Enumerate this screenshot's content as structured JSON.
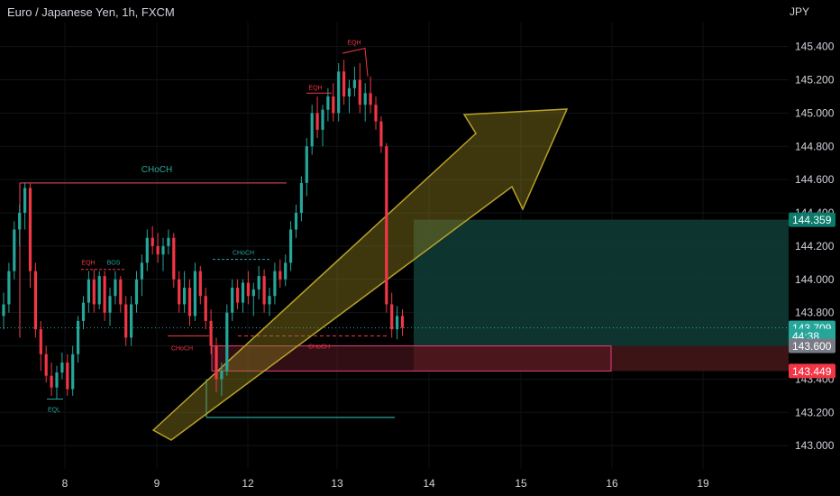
{
  "header": {
    "symbol_title": "Euro / Japanese Yen, 1h, FXCM",
    "currency": "JPY"
  },
  "chart_data": {
    "type": "candlestick",
    "title": "Euro / Japanese Yen, 1h, FXCM",
    "ylim": [
      142.86,
      145.55
    ],
    "y_ticks": [
      "145.400",
      "145.200",
      "145.000",
      "144.800",
      "144.600",
      "144.400",
      "144.200",
      "144.000",
      "143.800",
      "143.600",
      "143.400",
      "143.200",
      "143.000"
    ],
    "y_tick_values": [
      145.4,
      145.2,
      145.0,
      144.8,
      144.6,
      144.4,
      144.2,
      144.0,
      143.8,
      143.6,
      143.4,
      143.2,
      143.0
    ],
    "x_ticks": [
      "8",
      "9",
      "12",
      "13",
      "14",
      "15",
      "16",
      "19"
    ],
    "price_labels": [
      {
        "text": "144.359",
        "value": 144.359,
        "bg": "#0b7a6a"
      },
      {
        "text": "143.709",
        "value": 143.709,
        "bg": "#26a69a"
      },
      {
        "text": "44:38",
        "value": 143.66,
        "bg": "#26a69a"
      },
      {
        "text": "143.600",
        "value": 143.6,
        "bg": "#787b86"
      },
      {
        "text": "143.449",
        "value": 143.449,
        "bg": "#f23645"
      }
    ],
    "annotations": {
      "choch_top": "CHoCH",
      "eql": "EQL",
      "eqh_left": "EQH",
      "bos": "BOS",
      "choch_mid": "CHoCH",
      "choch_left_low": "CHoCH",
      "eqh_mid": "EQH",
      "eqh_top": "EQH",
      "choch_right": "CHoCH"
    },
    "colors": {
      "up": "#26a69a",
      "down": "#f23645",
      "bg": "#000000",
      "arrow": "#8a7a1e",
      "tp_zone": "#0f3a34",
      "sl_zone": "#3d1416"
    },
    "candles": [
      [
        143.78,
        143.92,
        143.7,
        143.85
      ],
      [
        143.85,
        144.1,
        143.8,
        144.05
      ],
      [
        144.05,
        144.35,
        144.0,
        144.3
      ],
      [
        144.3,
        144.45,
        144.2,
        144.4
      ],
      [
        144.4,
        144.58,
        144.3,
        144.55
      ],
      [
        144.55,
        144.58,
        143.95,
        144.05
      ],
      [
        144.05,
        144.1,
        143.65,
        143.7
      ],
      [
        143.7,
        143.75,
        143.45,
        143.55
      ],
      [
        143.55,
        143.6,
        143.38,
        143.42
      ],
      [
        143.42,
        143.5,
        143.3,
        143.35
      ],
      [
        143.35,
        143.48,
        143.28,
        143.44
      ],
      [
        143.44,
        143.56,
        143.4,
        143.5
      ],
      [
        143.5,
        143.55,
        143.3,
        143.34
      ],
      [
        143.34,
        143.6,
        143.3,
        143.55
      ],
      [
        143.55,
        143.78,
        143.5,
        143.75
      ],
      [
        143.75,
        143.9,
        143.7,
        143.86
      ],
      [
        143.86,
        144.05,
        143.8,
        144.0
      ],
      [
        144.0,
        144.06,
        143.8,
        143.85
      ],
      [
        143.85,
        144.05,
        143.82,
        144.02
      ],
      [
        144.02,
        144.05,
        143.75,
        143.8
      ],
      [
        143.8,
        143.95,
        143.72,
        143.9
      ],
      [
        143.9,
        144.05,
        143.85,
        144.0
      ],
      [
        144.0,
        144.02,
        143.8,
        143.85
      ],
      [
        143.85,
        143.9,
        143.6,
        143.65
      ],
      [
        143.65,
        143.9,
        143.6,
        143.85
      ],
      [
        143.85,
        144.05,
        143.8,
        144.0
      ],
      [
        144.0,
        144.15,
        143.9,
        144.1
      ],
      [
        144.1,
        144.3,
        144.05,
        144.25
      ],
      [
        144.25,
        144.32,
        144.15,
        144.2
      ],
      [
        144.2,
        144.28,
        144.1,
        144.15
      ],
      [
        144.15,
        144.25,
        144.05,
        144.2
      ],
      [
        144.2,
        144.3,
        144.15,
        144.25
      ],
      [
        144.25,
        144.28,
        143.95,
        144.0
      ],
      [
        144.0,
        144.05,
        143.8,
        143.85
      ],
      [
        143.85,
        144.05,
        143.8,
        143.95
      ],
      [
        143.95,
        144.0,
        143.72,
        143.78
      ],
      [
        143.78,
        144.1,
        143.75,
        144.05
      ],
      [
        144.05,
        144.08,
        143.85,
        143.9
      ],
      [
        143.9,
        143.95,
        143.7,
        143.75
      ],
      [
        143.75,
        143.82,
        143.55,
        143.6
      ],
      [
        143.6,
        143.65,
        143.32,
        143.4
      ],
      [
        143.4,
        143.5,
        143.3,
        143.45
      ],
      [
        143.45,
        143.85,
        143.42,
        143.8
      ],
      [
        143.8,
        144.0,
        143.75,
        143.95
      ],
      [
        143.95,
        144.0,
        143.82,
        143.86
      ],
      [
        143.86,
        144.0,
        143.8,
        143.98
      ],
      [
        143.98,
        144.05,
        143.85,
        143.9
      ],
      [
        143.9,
        143.98,
        143.78,
        143.94
      ],
      [
        143.94,
        144.08,
        143.88,
        144.02
      ],
      [
        144.02,
        144.06,
        143.8,
        143.85
      ],
      [
        143.85,
        143.95,
        143.78,
        143.9
      ],
      [
        143.9,
        144.1,
        143.85,
        144.05
      ],
      [
        144.05,
        144.12,
        143.95,
        144.0
      ],
      [
        144.0,
        144.15,
        143.96,
        144.1
      ],
      [
        144.1,
        144.35,
        144.05,
        144.3
      ],
      [
        144.3,
        144.45,
        144.25,
        144.4
      ],
      [
        144.4,
        144.62,
        144.35,
        144.58
      ],
      [
        144.58,
        144.85,
        144.5,
        144.8
      ],
      [
        144.8,
        145.05,
        144.75,
        145.0
      ],
      [
        145.0,
        145.1,
        144.85,
        144.9
      ],
      [
        144.9,
        145.05,
        144.8,
        145.02
      ],
      [
        145.02,
        145.15,
        144.95,
        145.1
      ],
      [
        145.1,
        145.18,
        144.95,
        145.0
      ],
      [
        145.0,
        145.3,
        144.95,
        145.25
      ],
      [
        145.25,
        145.32,
        145.05,
        145.1
      ],
      [
        145.1,
        145.2,
        145.0,
        145.15
      ],
      [
        145.15,
        145.28,
        145.1,
        145.2
      ],
      [
        145.2,
        145.3,
        145.0,
        145.05
      ],
      [
        145.05,
        145.18,
        144.95,
        145.12
      ],
      [
        145.12,
        145.22,
        145.0,
        145.05
      ],
      [
        145.05,
        145.1,
        144.9,
        144.95
      ],
      [
        144.95,
        144.98,
        144.76,
        144.8
      ],
      [
        144.8,
        144.82,
        143.8,
        143.85
      ],
      [
        143.85,
        143.92,
        143.65,
        143.7
      ],
      [
        143.7,
        143.84,
        143.64,
        143.78
      ],
      [
        143.78,
        143.82,
        143.66,
        143.709
      ]
    ]
  }
}
